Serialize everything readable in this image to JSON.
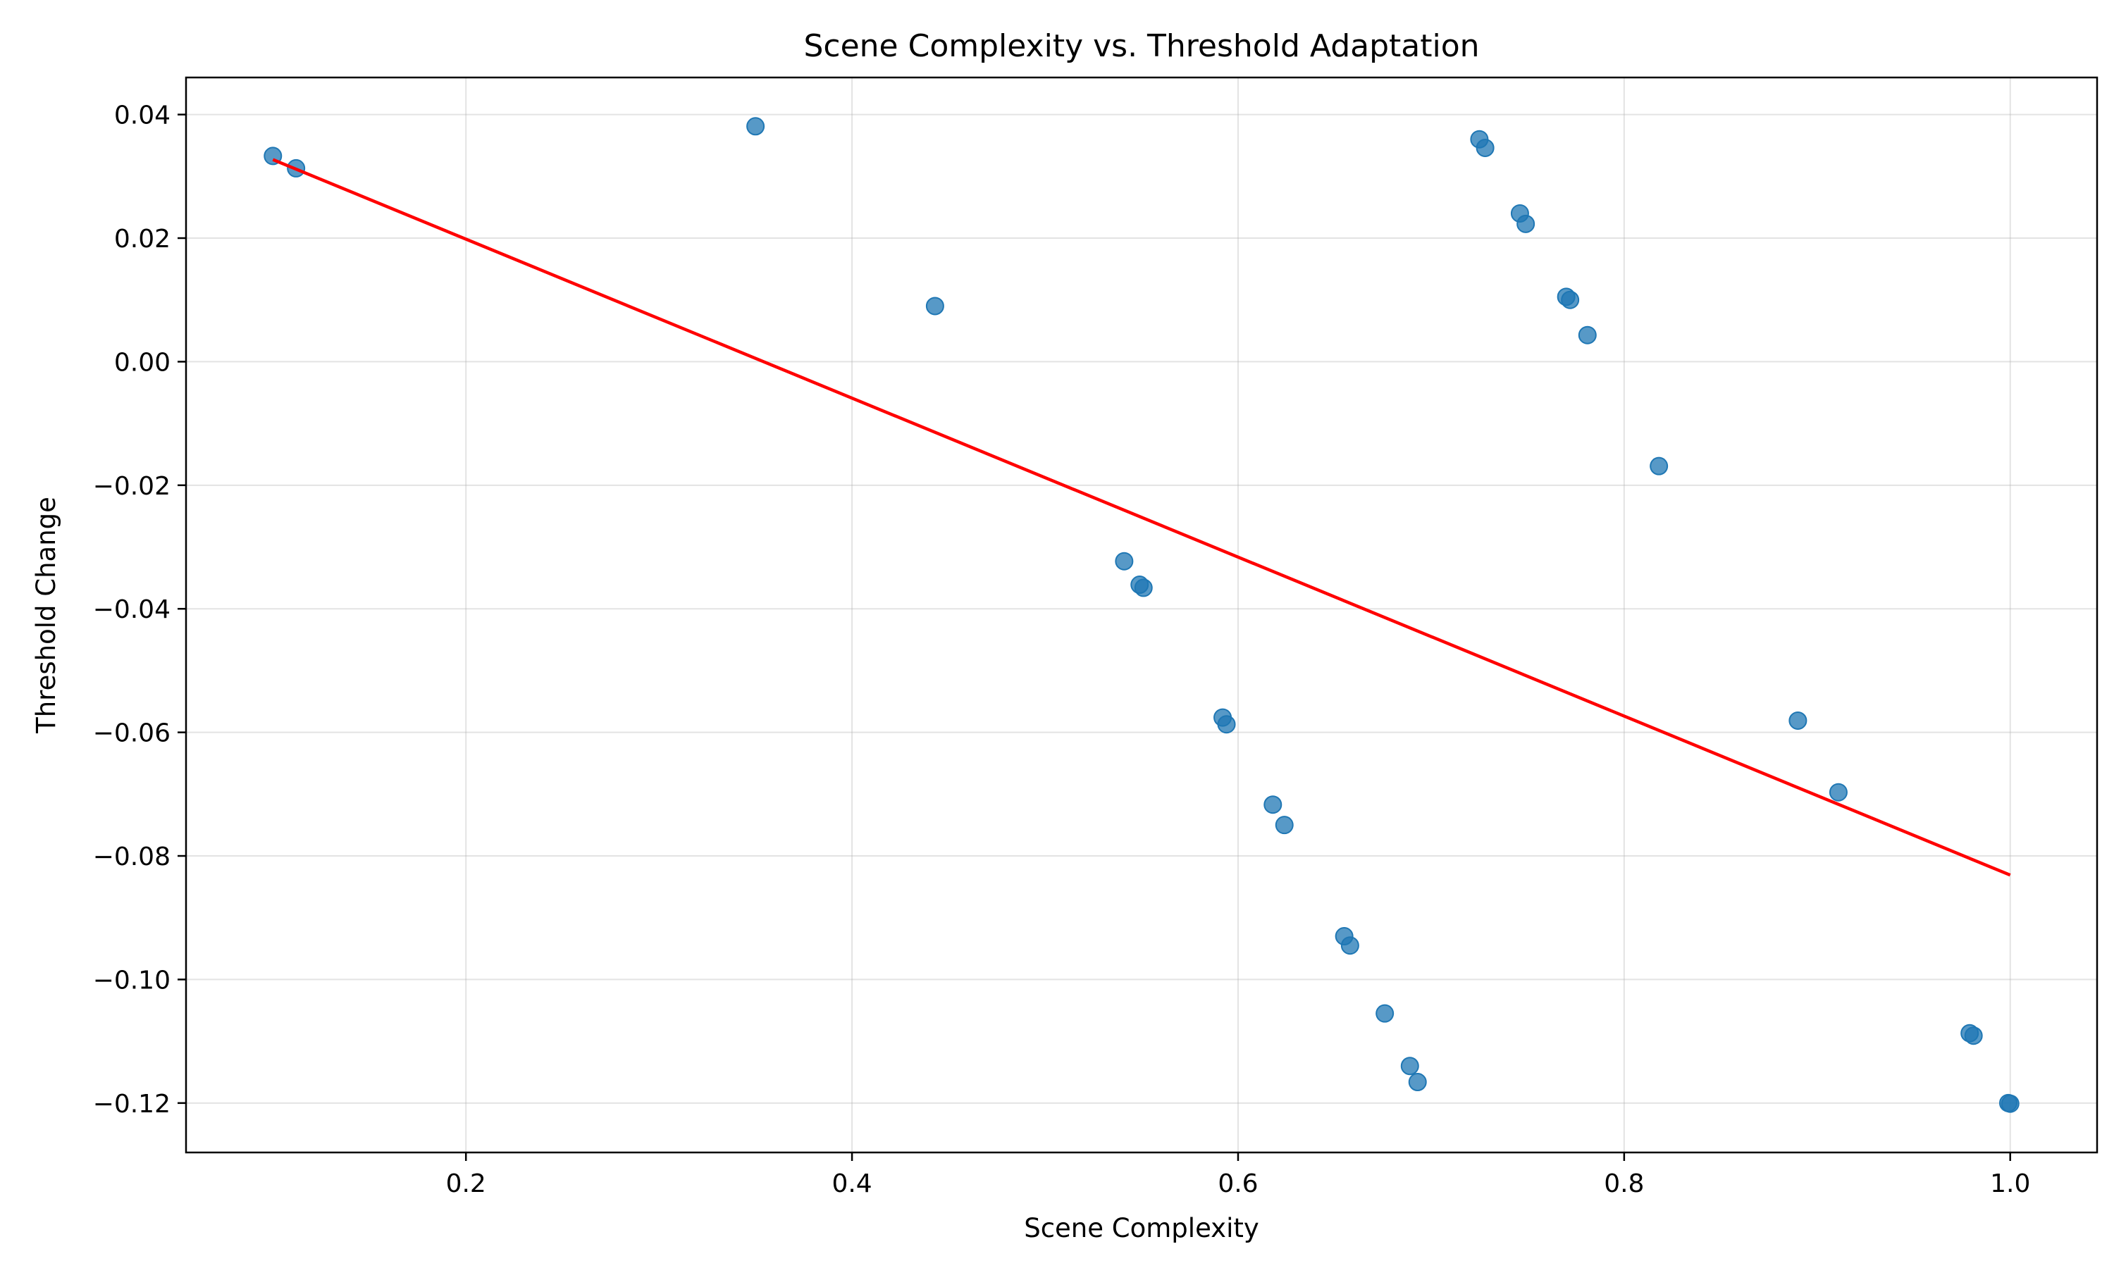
{
  "chart_data": {
    "type": "scatter",
    "title": "Scene Complexity vs. Threshold Adaptation",
    "xlabel": "Scene Complexity",
    "ylabel": "Threshold Change",
    "xlim": [
      0.055,
      1.045
    ],
    "ylim": [
      -0.128,
      0.046
    ],
    "xticks": [
      0.2,
      0.4,
      0.6,
      0.8,
      1.0
    ],
    "xtick_labels": [
      "0.2",
      "0.4",
      "0.6",
      "0.8",
      "1.0"
    ],
    "yticks": [
      0.04,
      0.02,
      0.0,
      -0.02,
      -0.04,
      -0.06,
      -0.08,
      -0.1,
      -0.12
    ],
    "ytick_labels": [
      "0.04",
      "0.02",
      "0.00",
      "−0.02",
      "−0.04",
      "−0.06",
      "−0.08",
      "−0.10",
      "−0.12"
    ],
    "grid": true,
    "series": [
      {
        "kind": "scatter",
        "color": "#1f77b4",
        "points": [
          {
            "x": 0.1,
            "y": 0.0333
          },
          {
            "x": 0.112,
            "y": 0.0313
          },
          {
            "x": 0.35,
            "y": 0.0381
          },
          {
            "x": 0.443,
            "y": 0.009
          },
          {
            "x": 0.541,
            "y": -0.0323
          },
          {
            "x": 0.549,
            "y": -0.0361
          },
          {
            "x": 0.551,
            "y": -0.0366
          },
          {
            "x": 0.592,
            "y": -0.0576
          },
          {
            "x": 0.594,
            "y": -0.0587
          },
          {
            "x": 0.618,
            "y": -0.0717
          },
          {
            "x": 0.624,
            "y": -0.075
          },
          {
            "x": 0.655,
            "y": -0.093
          },
          {
            "x": 0.658,
            "y": -0.0945
          },
          {
            "x": 0.676,
            "y": -0.1055
          },
          {
            "x": 0.689,
            "y": -0.114
          },
          {
            "x": 0.693,
            "y": -0.1166
          },
          {
            "x": 0.725,
            "y": 0.036
          },
          {
            "x": 0.728,
            "y": 0.0346
          },
          {
            "x": 0.746,
            "y": 0.024
          },
          {
            "x": 0.749,
            "y": 0.0223
          },
          {
            "x": 0.77,
            "y": 0.0105
          },
          {
            "x": 0.772,
            "y": 0.01
          },
          {
            "x": 0.781,
            "y": 0.0043
          },
          {
            "x": 0.818,
            "y": -0.0169
          },
          {
            "x": 0.89,
            "y": -0.0581
          },
          {
            "x": 0.911,
            "y": -0.0697
          },
          {
            "x": 0.979,
            "y": -0.1087
          },
          {
            "x": 0.981,
            "y": -0.1091
          },
          {
            "x": 0.999,
            "y": -0.12
          },
          {
            "x": 1.0,
            "y": -0.1201
          }
        ]
      },
      {
        "kind": "line",
        "color": "#ff0000",
        "points": [
          {
            "x": 0.1,
            "y": 0.0327
          },
          {
            "x": 1.0,
            "y": -0.0831
          }
        ]
      }
    ]
  }
}
